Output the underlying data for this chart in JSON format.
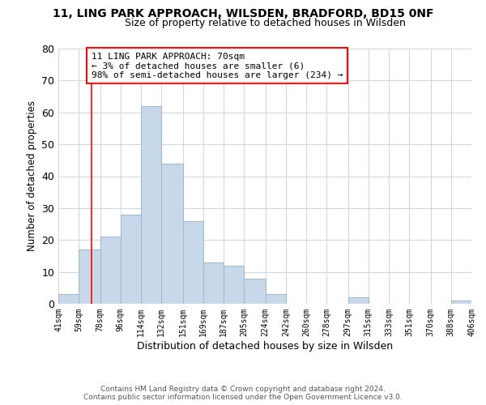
{
  "title1": "11, LING PARK APPROACH, WILSDEN, BRADFORD, BD15 0NF",
  "title2": "Size of property relative to detached houses in Wilsden",
  "xlabel": "Distribution of detached houses by size in Wilsden",
  "ylabel": "Number of detached properties",
  "bar_color": "#c8d8eb",
  "bar_edge_color": "#a0b8cc",
  "bin_labels": [
    "41sqm",
    "59sqm",
    "78sqm",
    "96sqm",
    "114sqm",
    "132sqm",
    "151sqm",
    "169sqm",
    "187sqm",
    "205sqm",
    "224sqm",
    "242sqm",
    "260sqm",
    "278sqm",
    "297sqm",
    "315sqm",
    "333sqm",
    "351sqm",
    "370sqm",
    "388sqm",
    "406sqm"
  ],
  "bar_heights": [
    3,
    17,
    21,
    28,
    62,
    44,
    26,
    13,
    12,
    8,
    3,
    0,
    0,
    0,
    2,
    0,
    0,
    0,
    0,
    1
  ],
  "ylim": [
    0,
    80
  ],
  "yticks": [
    0,
    10,
    20,
    30,
    40,
    50,
    60,
    70,
    80
  ],
  "property_line_x": 70,
  "annotation_text_line1": "11 LING PARK APPROACH: 70sqm",
  "annotation_text_line2": "← 3% of detached houses are smaller (6)",
  "annotation_text_line3": "98% of semi-detached houses are larger (234) →",
  "footer_line1": "Contains HM Land Registry data © Crown copyright and database right 2024.",
  "footer_line2": "Contains public sector information licensed under the Open Government Licence v3.0.",
  "bg_color": "#ffffff",
  "grid_color": "#d0d8e0"
}
